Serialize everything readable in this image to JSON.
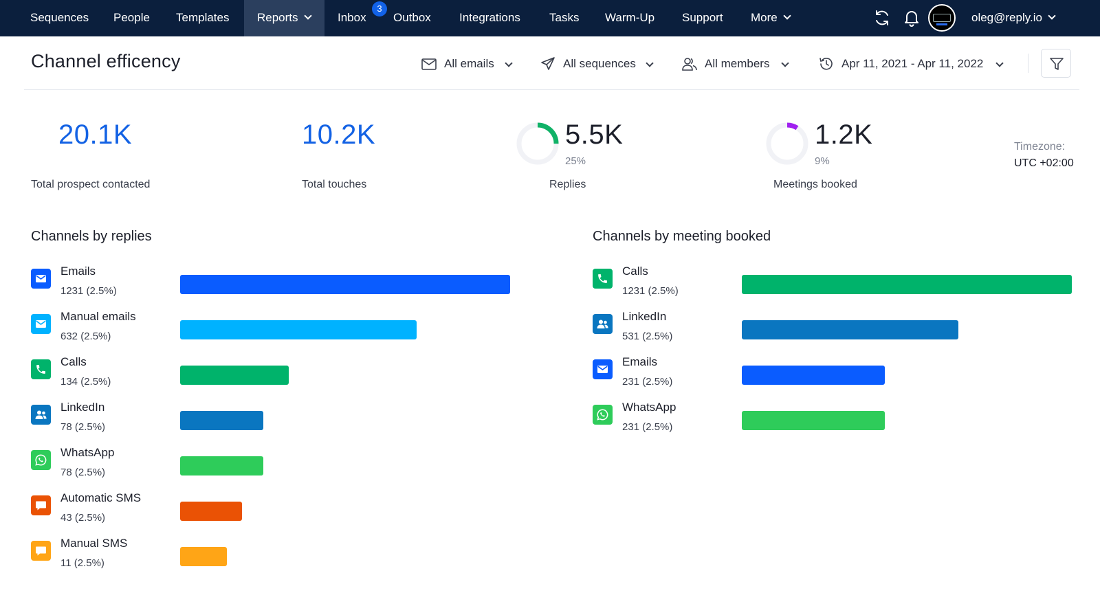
{
  "nav": {
    "items": [
      {
        "label": "Sequences"
      },
      {
        "label": "People"
      },
      {
        "label": "Templates"
      },
      {
        "label": "Reports"
      },
      {
        "label": "Inbox"
      },
      {
        "label": "Outbox"
      },
      {
        "label": "Integrations"
      },
      {
        "label": "Tasks"
      },
      {
        "label": "Warm-Up"
      },
      {
        "label": "Support"
      },
      {
        "label": "More"
      }
    ],
    "inbox_badge": "3",
    "user_email": "oleg@reply.io",
    "icons": [
      "refresh-icon",
      "bell-icon",
      "avatar"
    ]
  },
  "header": {
    "title": "Channel efficency",
    "filters": {
      "emails": "All emails",
      "sequences": "All sequences",
      "members": "All members",
      "date_range": "Apr 11, 2021 - Apr 11, 2022"
    }
  },
  "stats": {
    "prospects": {
      "value": "20.1K",
      "label": "Total prospect contacted"
    },
    "touches": {
      "value": "10.2K",
      "label": "Total touches"
    },
    "replies": {
      "value": "5.5K",
      "pct": "25%",
      "label": "Replies",
      "fraction": 0.25,
      "color": "#10b267"
    },
    "meetings": {
      "value": "1.2K",
      "pct": "9%",
      "label": "Meetings booked",
      "fraction": 0.09,
      "color": "#a020f0"
    },
    "timezone_label": "Timezone:",
    "timezone_value": "UTC +02:00"
  },
  "replies_section": {
    "title": "Channels by replies",
    "max": 1231,
    "items": [
      {
        "name": "Emails",
        "value_text": "1231 (2.5%)",
        "value": 1231,
        "color": "#0a5cff",
        "icon": "mail-icon"
      },
      {
        "name": "Manual emails",
        "value_text": "632 (2.5%)",
        "value": 632,
        "color": "#00b2ff",
        "icon": "mail-icon"
      },
      {
        "name": "Calls",
        "value_text": "134 (2.5%)",
        "value": 134,
        "color": "#00b36b",
        "icon": "phone-icon"
      },
      {
        "name": "LinkedIn",
        "value_text": "78 (2.5%)",
        "value": 78,
        "color": "#0a76c0",
        "icon": "people-icon"
      },
      {
        "name": "WhatsApp",
        "value_text": "78 (2.5%)",
        "value": 78,
        "color": "#2ecc5a",
        "icon": "whatsapp-icon"
      },
      {
        "name": "Automatic SMS",
        "value_text": "43 (2.5%)",
        "value": 43,
        "color": "#ea5205",
        "icon": "sms-icon"
      },
      {
        "name": "Manual SMS",
        "value_text": "11 (2.5%)",
        "value": 11,
        "color": "#ffa516",
        "icon": "sms-icon"
      }
    ]
  },
  "meetings_section": {
    "title": "Channels by meeting booked",
    "max": 1231,
    "items": [
      {
        "name": "Calls",
        "value_text": "1231 (2.5%)",
        "value": 1231,
        "color": "#00b36b",
        "icon": "phone-icon"
      },
      {
        "name": "LinkedIn",
        "value_text": "531 (2.5%)",
        "value": 531,
        "color": "#0a76c0",
        "icon": "people-icon"
      },
      {
        "name": "Emails",
        "value_text": "231 (2.5%)",
        "value": 231,
        "color": "#0a5cff",
        "icon": "mail-icon"
      },
      {
        "name": "WhatsApp",
        "value_text": "231 (2.5%)",
        "value": 231,
        "color": "#2ecc5a",
        "icon": "whatsapp-icon"
      }
    ]
  }
}
